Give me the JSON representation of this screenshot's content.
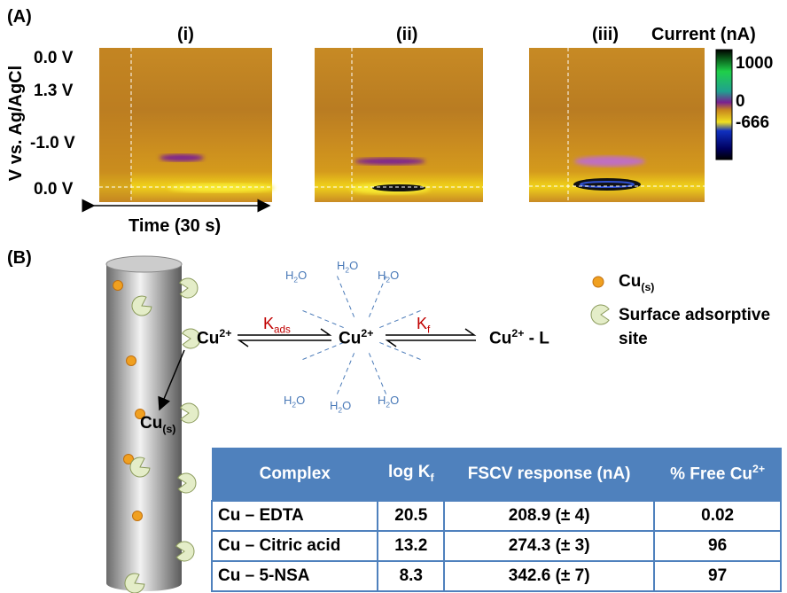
{
  "panel_a": {
    "label": "(A)",
    "titles": [
      "(i)",
      "(ii)",
      "(iii)"
    ],
    "y_axis_label": "V vs. Ag/AgCl",
    "y_tick_labels": [
      "0.0 V",
      "1.3 V",
      "-1.0 V",
      "0.0 V"
    ],
    "x_axis_label": "Time (30 s)",
    "colorbar": {
      "title": "Current (nA)",
      "ticks": [
        1000,
        0,
        -666
      ]
    }
  },
  "panel_b": {
    "label": "(B)",
    "cu_left": {
      "text": "Cu",
      "sup": "2+"
    },
    "k_ads": {
      "text": "K",
      "sub": "ads"
    },
    "cu_center": {
      "text": "Cu",
      "sup": "2+"
    },
    "k_f": {
      "text": "K",
      "sub": "f"
    },
    "cu_ligand": {
      "text": "Cu",
      "sup": "2+",
      "tail": " - L"
    },
    "cu_solid": {
      "text": "Cu",
      "sub": "(s)"
    },
    "water": [
      {
        "text": "H",
        "sub": "2",
        "tail": "O"
      },
      {
        "text": "H",
        "sub": "2",
        "tail": "O"
      },
      {
        "text": "H",
        "sub": "2",
        "tail": "O"
      },
      {
        "text": "H",
        "sub": "2",
        "tail": "O"
      },
      {
        "text": "H",
        "sub": "2",
        "tail": "O"
      },
      {
        "text": "H",
        "sub": "2",
        "tail": "O"
      }
    ],
    "legend": [
      {
        "text": "Cu",
        "sub": "(s)"
      },
      {
        "text": "Surface adsorptive site"
      }
    ]
  },
  "table": {
    "header": [
      {
        "text": "Complex"
      },
      {
        "text": "log K",
        "sub": "f"
      },
      {
        "text": "FSCV response (nA)"
      },
      {
        "text": "% Free Cu",
        "sup": "2+"
      }
    ],
    "rows": [
      [
        "Cu – EDTA",
        "20.5",
        "208.9 (± 4)",
        "0.02"
      ],
      [
        "Cu – Citric acid",
        "13.2",
        "274.3 (± 3)",
        "96"
      ],
      [
        "Cu – 5-NSA",
        "8.3",
        "342.6 (± 7)",
        "97"
      ]
    ]
  }
}
